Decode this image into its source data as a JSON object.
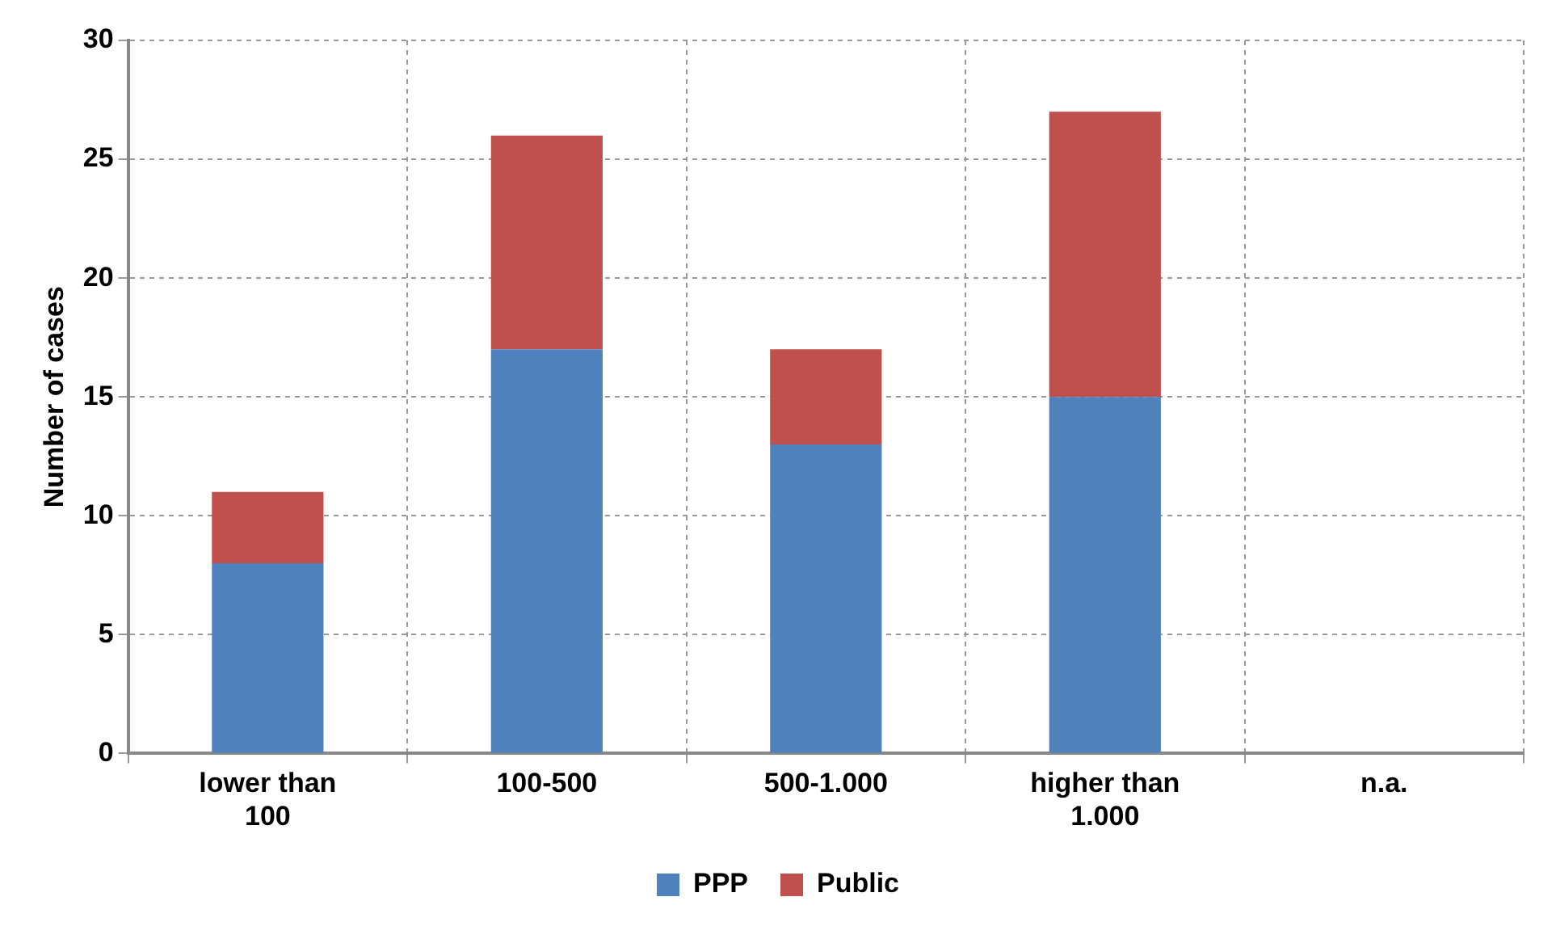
{
  "chart_data": {
    "type": "bar",
    "ylabel": "Number of cases",
    "categories": [
      "lower than 100",
      "100-500",
      "500-1.000",
      "higher than 1.000",
      "n.a."
    ],
    "series": [
      {
        "name": "PPP",
        "color": "#4f81bd",
        "values": [
          8,
          17,
          13,
          15,
          0
        ]
      },
      {
        "name": "Public",
        "color": "#c0504d",
        "values": [
          3,
          9,
          4,
          12,
          0
        ]
      }
    ],
    "stacked": true,
    "ylim": [
      0,
      30
    ],
    "yticks": [
      0,
      5,
      10,
      15,
      20,
      25,
      30
    ],
    "grid": true,
    "legend": "bottom"
  }
}
